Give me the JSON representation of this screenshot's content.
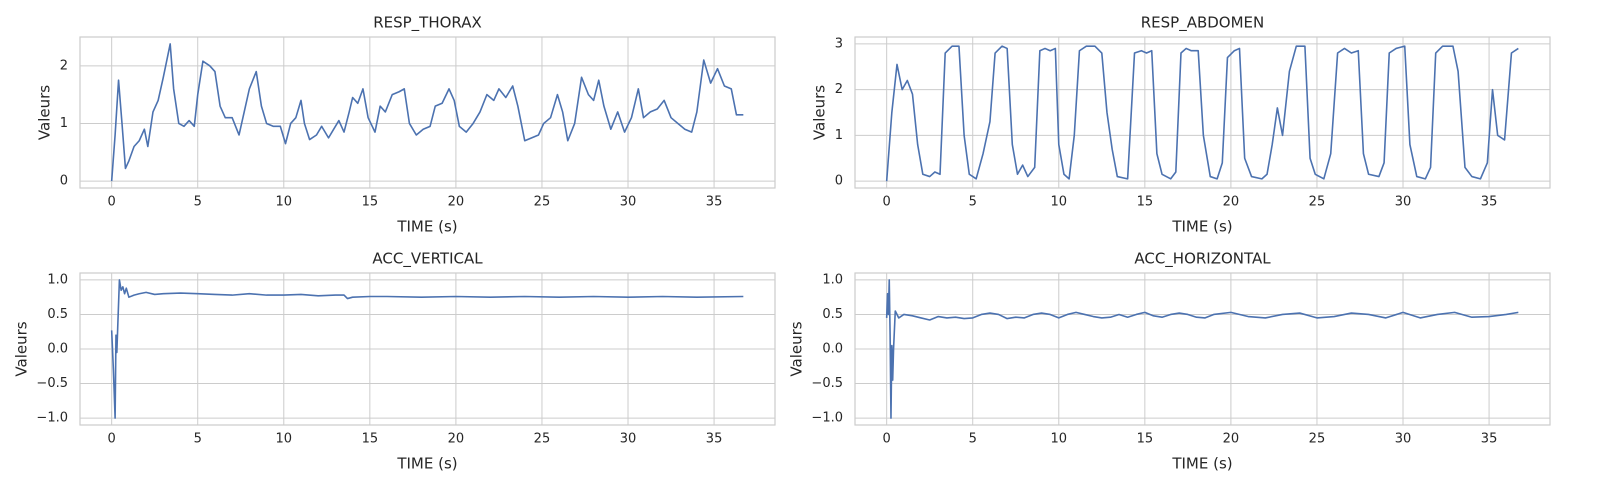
{
  "chart_data": [
    {
      "type": "line",
      "title": "RESP_THORAX",
      "x_label": "TIME (s)",
      "y_label": "Valeurs",
      "color": "#4c72b0",
      "grid": true,
      "xlim": [
        -1.84,
        38.54
      ],
      "ylim": [
        -0.12,
        2.5
      ],
      "xticks": [
        0,
        5,
        10,
        15,
        20,
        25,
        30,
        35
      ],
      "yticks": [
        0,
        1,
        2
      ],
      "x": [
        0,
        0.2,
        0.4,
        0.6,
        0.8,
        1.0,
        1.3,
        1.6,
        1.9,
        2.1,
        2.4,
        2.7,
        3.0,
        3.4,
        3.6,
        3.9,
        4.2,
        4.5,
        4.8,
        5.0,
        5.3,
        5.7,
        6.0,
        6.3,
        6.6,
        7.0,
        7.4,
        7.7,
        8.0,
        8.4,
        8.7,
        9.0,
        9.4,
        9.8,
        10.1,
        10.4,
        10.7,
        11.0,
        11.2,
        11.5,
        11.9,
        12.2,
        12.6,
        12.9,
        13.2,
        13.5,
        13.8,
        14.0,
        14.3,
        14.6,
        14.9,
        15.3,
        15.6,
        15.9,
        16.3,
        16.7,
        17.0,
        17.3,
        17.7,
        18.1,
        18.5,
        18.8,
        19.2,
        19.6,
        19.9,
        20.2,
        20.6,
        21.0,
        21.4,
        21.8,
        22.2,
        22.5,
        22.9,
        23.3,
        23.6,
        24.0,
        24.4,
        24.8,
        25.1,
        25.5,
        25.9,
        26.2,
        26.5,
        26.9,
        27.3,
        27.7,
        28.0,
        28.3,
        28.6,
        29.0,
        29.4,
        29.8,
        30.2,
        30.6,
        30.9,
        31.3,
        31.7,
        32.1,
        32.5,
        32.9,
        33.3,
        33.7,
        34.0,
        34.4,
        34.8,
        35.2,
        35.6,
        36.0,
        36.3,
        36.7
      ],
      "values": [
        0,
        0.8,
        1.75,
        1.0,
        0.22,
        0.35,
        0.6,
        0.7,
        0.9,
        0.6,
        1.2,
        1.4,
        1.8,
        2.38,
        1.6,
        1.0,
        0.95,
        1.05,
        0.95,
        1.5,
        2.08,
        2.0,
        1.9,
        1.3,
        1.1,
        1.1,
        0.8,
        1.2,
        1.6,
        1.9,
        1.3,
        1.0,
        0.95,
        0.95,
        0.65,
        1.0,
        1.1,
        1.4,
        1.0,
        0.72,
        0.8,
        0.95,
        0.75,
        0.9,
        1.05,
        0.85,
        1.2,
        1.45,
        1.35,
        1.6,
        1.1,
        0.85,
        1.3,
        1.2,
        1.5,
        1.55,
        1.6,
        1.0,
        0.8,
        0.9,
        0.95,
        1.3,
        1.35,
        1.6,
        1.4,
        0.95,
        0.85,
        1.0,
        1.2,
        1.5,
        1.4,
        1.6,
        1.45,
        1.65,
        1.3,
        0.7,
        0.75,
        0.8,
        1.0,
        1.1,
        1.5,
        1.2,
        0.7,
        1.0,
        1.8,
        1.5,
        1.4,
        1.75,
        1.3,
        0.9,
        1.2,
        0.85,
        1.1,
        1.6,
        1.1,
        1.2,
        1.25,
        1.4,
        1.1,
        1.0,
        0.9,
        0.85,
        1.2,
        2.1,
        1.7,
        1.95,
        1.65,
        1.6,
        1.15,
        1.15
      ]
    },
    {
      "type": "line",
      "title": "RESP_ABDOMEN",
      "x_label": "TIME (s)",
      "y_label": "Valeurs",
      "color": "#4c72b0",
      "grid": true,
      "xlim": [
        -1.84,
        38.54
      ],
      "ylim": [
        -0.15,
        3.15
      ],
      "xticks": [
        0,
        5,
        10,
        15,
        20,
        25,
        30,
        35
      ],
      "yticks": [
        0,
        1,
        2,
        3
      ],
      "x": [
        0,
        0.3,
        0.6,
        0.9,
        1.2,
        1.5,
        1.8,
        2.1,
        2.5,
        2.8,
        3.1,
        3.4,
        3.8,
        4.2,
        4.5,
        4.8,
        5.2,
        5.6,
        6.0,
        6.3,
        6.7,
        7.0,
        7.3,
        7.6,
        7.9,
        8.2,
        8.6,
        8.9,
        9.2,
        9.5,
        9.8,
        10.0,
        10.3,
        10.6,
        10.9,
        11.2,
        11.6,
        12.1,
        12.5,
        12.8,
        13.1,
        13.4,
        14.0,
        14.4,
        14.8,
        15.1,
        15.4,
        15.7,
        16.0,
        16.5,
        16.8,
        17.1,
        17.4,
        17.7,
        18.1,
        18.4,
        18.8,
        19.2,
        19.5,
        19.8,
        20.2,
        20.5,
        20.8,
        21.2,
        21.8,
        22.1,
        22.4,
        22.7,
        23.0,
        23.4,
        23.8,
        24.3,
        24.6,
        24.9,
        25.4,
        25.8,
        26.2,
        26.6,
        27.0,
        27.4,
        27.7,
        28.0,
        28.6,
        28.9,
        29.2,
        29.6,
        30.1,
        30.4,
        30.8,
        31.3,
        31.6,
        31.9,
        32.3,
        32.9,
        33.2,
        33.6,
        34.0,
        34.5,
        34.9,
        35.2,
        35.5,
        35.9,
        36.3,
        36.7
      ],
      "values": [
        0,
        1.5,
        2.55,
        2.0,
        2.2,
        1.9,
        0.8,
        0.15,
        0.1,
        0.2,
        0.15,
        2.8,
        2.95,
        2.95,
        1.0,
        0.15,
        0.05,
        0.6,
        1.3,
        2.8,
        2.95,
        2.9,
        0.8,
        0.15,
        0.35,
        0.1,
        0.3,
        2.85,
        2.9,
        2.85,
        2.9,
        0.8,
        0.15,
        0.05,
        1.0,
        2.85,
        2.95,
        2.95,
        2.8,
        1.5,
        0.7,
        0.1,
        0.05,
        2.8,
        2.85,
        2.8,
        2.85,
        0.6,
        0.15,
        0.05,
        0.2,
        2.8,
        2.9,
        2.85,
        2.85,
        1.0,
        0.1,
        0.05,
        0.4,
        2.7,
        2.85,
        2.9,
        0.5,
        0.1,
        0.05,
        0.15,
        0.8,
        1.6,
        1.0,
        2.4,
        2.95,
        2.95,
        0.5,
        0.15,
        0.05,
        0.6,
        2.8,
        2.9,
        2.8,
        2.85,
        0.6,
        0.15,
        0.1,
        0.4,
        2.8,
        2.9,
        2.95,
        0.8,
        0.1,
        0.05,
        0.3,
        2.8,
        2.95,
        2.95,
        2.4,
        0.3,
        0.1,
        0.05,
        0.4,
        2.0,
        1.0,
        0.9,
        2.8,
        2.9
      ]
    },
    {
      "type": "line",
      "title": "ACC_VERTICAL",
      "x_label": "TIME (s)",
      "y_label": "Valeurs",
      "color": "#4c72b0",
      "grid": true,
      "xlim": [
        -1.84,
        38.54
      ],
      "ylim": [
        -1.1,
        1.1
      ],
      "xticks": [
        0,
        5,
        10,
        15,
        20,
        25,
        30,
        35
      ],
      "yticks": [
        {
          "value": -1,
          "label": "−1.0"
        },
        {
          "value": -0.5,
          "label": "−0.5"
        },
        {
          "value": 0,
          "label": "0.0"
        },
        0.5,
        {
          "value": 1,
          "label": "1.0"
        }
      ],
      "x": [
        0,
        0.1,
        0.2,
        0.25,
        0.3,
        0.35,
        0.45,
        0.55,
        0.65,
        0.75,
        0.85,
        1.0,
        1.3,
        1.6,
        2.0,
        2.5,
        3,
        4,
        5,
        6,
        7,
        8,
        9,
        10,
        11,
        12,
        13,
        13.5,
        13.7,
        14,
        15,
        16,
        18,
        20,
        22,
        24,
        26,
        28,
        30,
        32,
        34,
        36.7
      ],
      "values": [
        0.27,
        -0.3,
        -1.0,
        0.2,
        -0.05,
        0.3,
        1.0,
        0.85,
        0.9,
        0.8,
        0.88,
        0.75,
        0.78,
        0.8,
        0.82,
        0.79,
        0.8,
        0.81,
        0.8,
        0.79,
        0.78,
        0.8,
        0.78,
        0.78,
        0.79,
        0.77,
        0.78,
        0.78,
        0.73,
        0.75,
        0.76,
        0.76,
        0.75,
        0.76,
        0.75,
        0.76,
        0.75,
        0.76,
        0.75,
        0.76,
        0.75,
        0.76
      ]
    },
    {
      "type": "line",
      "title": "ACC_HORIZONTAL",
      "x_label": "TIME (s)",
      "y_label": "Valeurs",
      "color": "#4c72b0",
      "grid": true,
      "xlim": [
        -1.84,
        38.54
      ],
      "ylim": [
        -1.1,
        1.1
      ],
      "xticks": [
        0,
        5,
        10,
        15,
        20,
        25,
        30,
        35
      ],
      "yticks": [
        {
          "value": -1,
          "label": "−1.0"
        },
        {
          "value": -0.5,
          "label": "−0.5"
        },
        {
          "value": 0,
          "label": "0.0"
        },
        0.5,
        {
          "value": 1,
          "label": "1.0"
        }
      ],
      "x": [
        0,
        0.05,
        0.1,
        0.15,
        0.2,
        0.25,
        0.3,
        0.35,
        0.4,
        0.5,
        0.7,
        1,
        1.5,
        2,
        2.5,
        3,
        3.5,
        4,
        4.5,
        5,
        5.5,
        6,
        6.5,
        7,
        7.5,
        8,
        8.5,
        9,
        9.5,
        10,
        10.5,
        11,
        11.5,
        12,
        12.5,
        13,
        13.5,
        14,
        14.5,
        15,
        15.5,
        16,
        16.5,
        17,
        17.5,
        18,
        18.5,
        19,
        20,
        21,
        22,
        23,
        24,
        25,
        26,
        27,
        28,
        29,
        30,
        31,
        32,
        33,
        34,
        35,
        36,
        36.7
      ],
      "values": [
        0.45,
        0.8,
        0.5,
        1.0,
        0.2,
        -1.0,
        0.05,
        -0.45,
        0.0,
        0.55,
        0.45,
        0.5,
        0.48,
        0.45,
        0.42,
        0.47,
        0.45,
        0.46,
        0.44,
        0.45,
        0.5,
        0.52,
        0.5,
        0.44,
        0.46,
        0.45,
        0.5,
        0.52,
        0.5,
        0.45,
        0.5,
        0.53,
        0.5,
        0.47,
        0.45,
        0.46,
        0.5,
        0.46,
        0.5,
        0.53,
        0.48,
        0.46,
        0.5,
        0.52,
        0.5,
        0.46,
        0.45,
        0.5,
        0.53,
        0.47,
        0.45,
        0.5,
        0.52,
        0.45,
        0.47,
        0.52,
        0.5,
        0.45,
        0.53,
        0.45,
        0.5,
        0.53,
        0.46,
        0.47,
        0.5,
        0.53
      ]
    }
  ]
}
